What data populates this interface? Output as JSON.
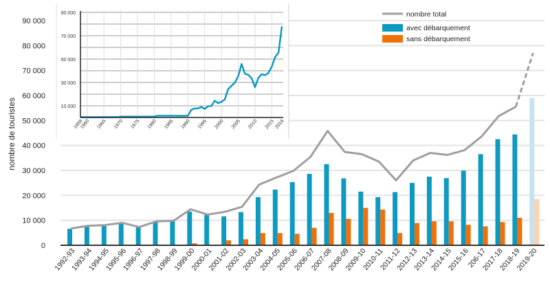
{
  "chart_data": [
    {
      "type": "bar",
      "ylabel": "nombre de touristes",
      "ylim": [
        0,
        90000
      ],
      "yticks": [
        "0",
        "10 000",
        "20 000",
        "30 000",
        "40 000",
        "50 000",
        "60 000",
        "70 000",
        "80 000",
        "90 000"
      ],
      "categories": [
        "1992-93",
        "1993-94",
        "1994-95",
        "1995-96",
        "1996-97",
        "1997-98",
        "1998-99",
        "1999-00",
        "2000-01",
        "2001-02",
        "2002-03",
        "2003-04",
        "2004-05",
        "2005-06",
        "2006-07",
        "2007-08",
        "2008-09",
        "2009-10",
        "2010-11",
        "2011-12",
        "2012-13",
        "2013-14",
        "2014-15",
        "2015-16",
        "206-17",
        "2017-18",
        "2018-19",
        "2019-20"
      ],
      "series": [
        {
          "name": "nombre total",
          "type": "line",
          "color": "#9e9e9e",
          "values": [
            6700,
            7800,
            8100,
            9000,
            7300,
            9600,
            9800,
            14400,
            12300,
            13400,
            15400,
            24300,
            27100,
            29800,
            35400,
            45800,
            37400,
            36500,
            33500,
            26000,
            34000,
            37000,
            36200,
            38100,
            43600,
            51800,
            55500,
            77000
          ],
          "projected_last": true
        },
        {
          "name": "avec débarquement",
          "type": "bar",
          "color": "#0e9ac0",
          "projected_color": "#c6e3ee",
          "values": [
            6600,
            7700,
            8000,
            9000,
            7200,
            9500,
            9800,
            13500,
            12200,
            11600,
            13300,
            19300,
            22300,
            25300,
            28600,
            32500,
            26800,
            21500,
            19300,
            21300,
            25000,
            27500,
            26900,
            29900,
            36500,
            42500,
            44400,
            59000
          ]
        },
        {
          "name": "sans débarquement",
          "type": "bar",
          "color": "#f0700a",
          "projected_color": "#fbd3b4",
          "values": [
            0,
            0,
            0,
            0,
            0,
            0,
            0,
            800,
            0,
            2000,
            2400,
            4900,
            4900,
            4600,
            7000,
            13000,
            10600,
            15000,
            14300,
            4900,
            8900,
            9600,
            9600,
            8200,
            7600,
            9300,
            11000,
            18500
          ]
        }
      ],
      "legend": "top-right"
    },
    {
      "type": "line",
      "title": "",
      "ylim": [
        0,
        90000
      ],
      "yticks": [
        "10 000",
        "30 000",
        "50 000",
        "70 000",
        "90 000"
      ],
      "xticks": [
        "1958",
        "1960",
        "1965",
        "1970",
        "1975",
        "1980",
        "1985",
        "1990",
        "1995",
        "2000",
        "2005",
        "2010",
        "2015",
        "2018"
      ],
      "color": "#0e9ac0",
      "x": [
        1958,
        1960,
        1965,
        1969,
        1970,
        1975,
        1980,
        1981,
        1985,
        1990,
        1991,
        1992,
        1993,
        1994,
        1995,
        1996,
        1997,
        1998,
        1999,
        2000,
        2001,
        2002,
        2003,
        2004,
        2005,
        2006,
        2007,
        2008,
        2009,
        2010,
        2011,
        2012,
        2013,
        2014,
        2015,
        2016,
        2017,
        2018
      ],
      "y": [
        300,
        300,
        400,
        400,
        700,
        700,
        800,
        1500,
        1500,
        1500,
        6500,
        7700,
        7800,
        9000,
        7300,
        9600,
        9800,
        14400,
        12300,
        13400,
        15400,
        24300,
        27100,
        29800,
        35400,
        45800,
        37400,
        36500,
        33500,
        26000,
        34000,
        37000,
        36200,
        38100,
        43600,
        51800,
        55500,
        78000
      ]
    }
  ]
}
